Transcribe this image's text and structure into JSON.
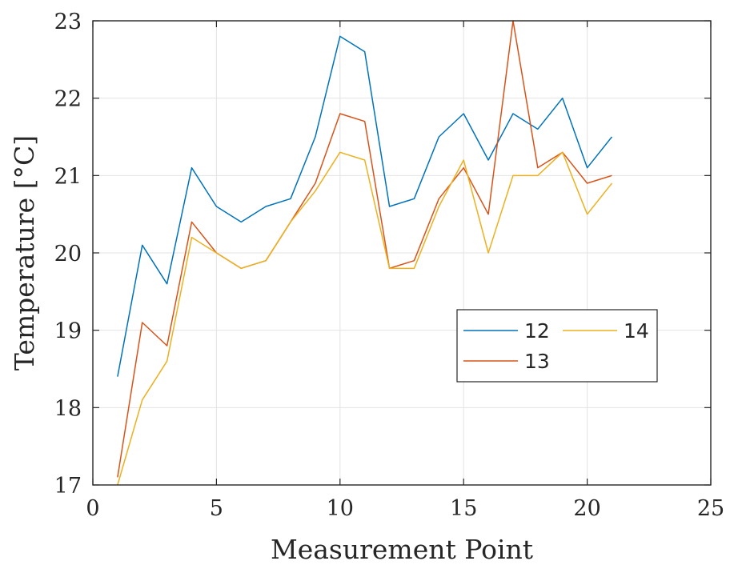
{
  "chart_data": {
    "type": "line",
    "title": "",
    "xlabel": "Measurement Point",
    "ylabel": "Temperature [°C]",
    "xlim": [
      0,
      25
    ],
    "ylim": [
      17,
      23
    ],
    "xticks": [
      0,
      5,
      10,
      15,
      20,
      25
    ],
    "yticks": [
      17,
      18,
      19,
      20,
      21,
      22,
      23
    ],
    "grid": true,
    "legend_position": "center-right",
    "x": [
      1,
      2,
      3,
      4,
      5,
      6,
      7,
      8,
      9,
      10,
      11,
      12,
      13,
      14,
      15,
      16,
      17,
      18,
      19,
      20,
      21
    ],
    "series": [
      {
        "name": "12",
        "color": "#0072BD",
        "values": [
          18.4,
          20.1,
          19.6,
          21.1,
          20.6,
          20.4,
          20.6,
          20.7,
          21.5,
          22.8,
          22.6,
          20.6,
          20.7,
          21.5,
          21.8,
          21.2,
          21.8,
          21.6,
          22.0,
          21.1,
          21.5
        ]
      },
      {
        "name": "13",
        "color": "#D95319",
        "values": [
          17.1,
          19.1,
          18.8,
          20.4,
          20.0,
          19.8,
          19.9,
          20.4,
          20.9,
          21.8,
          21.7,
          19.8,
          19.9,
          20.7,
          21.1,
          20.5,
          23.0,
          21.1,
          21.3,
          20.9,
          21.0
        ]
      },
      {
        "name": "14",
        "color": "#EDB120",
        "values": [
          17.0,
          18.1,
          18.6,
          20.2,
          20.0,
          19.8,
          19.9,
          20.4,
          20.8,
          21.3,
          21.2,
          19.8,
          19.8,
          20.6,
          21.2,
          20.0,
          21.0,
          21.0,
          21.3,
          20.5,
          20.9
        ]
      }
    ]
  }
}
